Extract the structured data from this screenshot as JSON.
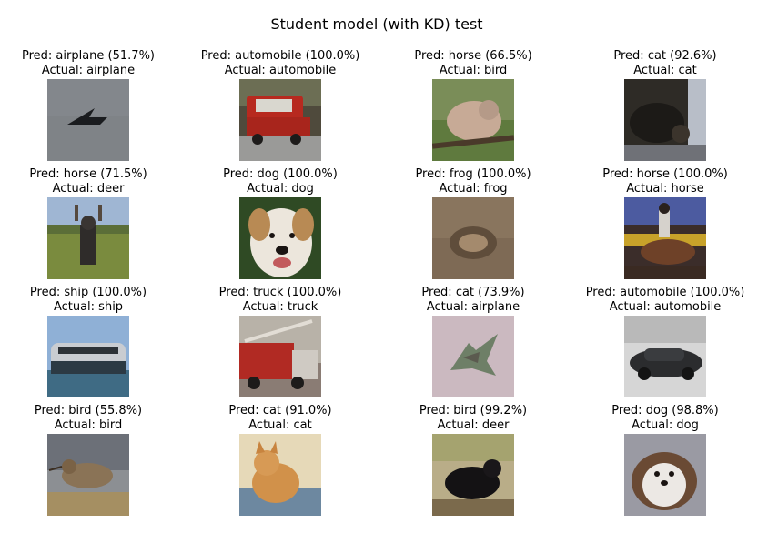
{
  "title": "Student model (with KD) test",
  "items": [
    {
      "pred": "Pred: airplane (51.7%)",
      "actual": "Actual: airplane",
      "image": "airplane-photo"
    },
    {
      "pred": "Pred: automobile (100.0%)",
      "actual": "Actual: automobile",
      "image": "red-car-photo"
    },
    {
      "pred": "Pred: horse (66.5%)",
      "actual": "Actual: bird",
      "image": "bird-on-branch-photo"
    },
    {
      "pred": "Pred: cat (92.6%)",
      "actual": "Actual: cat",
      "image": "dark-cat-photo"
    },
    {
      "pred": "Pred: horse (71.5%)",
      "actual": "Actual: deer",
      "image": "deer-in-field-photo"
    },
    {
      "pred": "Pred: dog (100.0%)",
      "actual": "Actual: dog",
      "image": "white-dog-photo"
    },
    {
      "pred": "Pred: frog (100.0%)",
      "actual": "Actual: frog",
      "image": "frog-on-ground-photo"
    },
    {
      "pred": "Pred: horse (100.0%)",
      "actual": "Actual: horse",
      "image": "horse-with-rider-photo"
    },
    {
      "pred": "Pred: ship (100.0%)",
      "actual": "Actual: ship",
      "image": "ship-on-water-photo"
    },
    {
      "pred": "Pred: truck (100.0%)",
      "actual": "Actual: truck",
      "image": "fire-truck-photo"
    },
    {
      "pred": "Pred: cat (73.9%)",
      "actual": "Actual: airplane",
      "image": "airplane-camo-photo"
    },
    {
      "pred": "Pred: automobile (100.0%)",
      "actual": "Actual: automobile",
      "image": "black-car-photo"
    },
    {
      "pred": "Pred: bird (55.8%)",
      "actual": "Actual: bird",
      "image": "wading-bird-photo"
    },
    {
      "pred": "Pred: cat (91.0%)",
      "actual": "Actual: cat",
      "image": "orange-cat-photo"
    },
    {
      "pred": "Pred: bird (99.2%)",
      "actual": "Actual: deer",
      "image": "dark-animal-photo"
    },
    {
      "pred": "Pred: dog (98.8%)",
      "actual": "Actual: dog",
      "image": "fluffy-dog-photo"
    }
  ]
}
